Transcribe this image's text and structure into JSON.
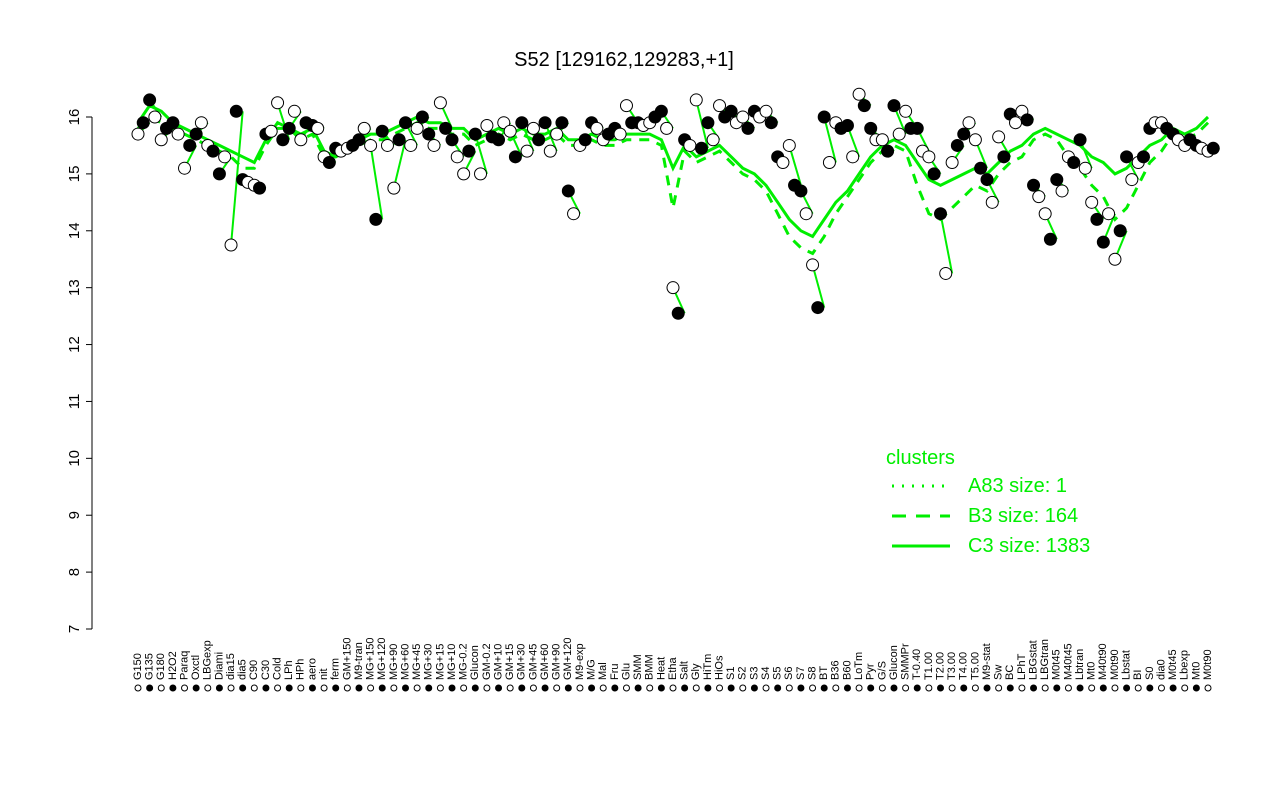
{
  "chart_data": {
    "type": "scatter",
    "title": "S52 [129162,129283,+1]",
    "ylim": [
      7,
      16.5
    ],
    "yticks": [
      7,
      8,
      9,
      10,
      11,
      12,
      13,
      14,
      15,
      16
    ],
    "grid": false,
    "colors": {
      "series": "#00ee00",
      "point_fill_dark": "#000000",
      "point_fill_light": "#ffffff",
      "axis": "#000000"
    },
    "x_tick_labels_top": [
      "G150",
      "G135",
      "G180",
      "H2O2",
      "Paraq",
      "Oxctl",
      "LBGexp",
      "Diami",
      "dia15",
      "dia5",
      "C90",
      "C30",
      "Cold",
      "LPh",
      "HPh",
      "aero",
      "nit",
      "ferm",
      "GM+150",
      "M9-tran",
      "MG+150",
      "MG+120",
      "MG+90",
      "MG+60",
      "MG+45",
      "MG+30",
      "MG+15",
      "MG+10",
      "MG-0.2",
      "Glucon",
      "GM-0.2",
      "GM+10",
      "GM+15",
      "GM+30",
      "GM+45",
      "GM+60",
      "GM+90",
      "GM+120",
      "M9-exp",
      "M/G",
      "Mal",
      "Fru",
      "Glu",
      "SMM",
      "BMM",
      "Heat",
      "Etha",
      "Salt",
      "Gly",
      "HiTm",
      "HiOs",
      "S1",
      "S2",
      "S3",
      "S4",
      "S5",
      "S6",
      "S7",
      "S8",
      "BT",
      "B36",
      "B60",
      "LoTm",
      "Pyr",
      "G/S",
      "Glucon",
      "SMMPr",
      "T-0.40",
      "T1.00",
      "T2.00",
      "T3.00",
      "T4.00",
      "T5.00",
      "M9-stat",
      "Sw",
      "BC",
      "LPhT",
      "LBGstat",
      "LBGtran",
      "M0t45",
      "M40t45",
      "Lbtran",
      "Mt0",
      "M40t90",
      "M0t90",
      "Lbstat",
      "BI",
      "S0",
      "dia0",
      "M0t45",
      "Lbexp",
      "Mt0",
      "M0t90"
    ],
    "legend": {
      "title": "clusters",
      "placement": "right",
      "entries": [
        {
          "style": "dotted",
          "label": "A83 size: 1"
        },
        {
          "style": "dashed",
          "label": "B3 size: 164"
        },
        {
          "style": "solid",
          "label": "C3 size: 1383"
        }
      ]
    },
    "series": [
      {
        "style": "solid",
        "values": [
          15.9,
          16.2,
          16.1,
          15.9,
          15.8,
          15.7,
          15.6,
          15.5,
          15.4,
          15.3,
          15.2,
          15.6,
          15.9,
          15.8,
          15.7,
          15.8,
          15.4,
          15.3,
          15.5,
          15.6,
          15.7,
          15.7,
          15.8,
          15.9,
          16.0,
          15.9,
          15.9,
          15.8,
          15.8,
          15.6,
          15.7,
          15.8,
          15.7,
          15.8,
          15.7,
          15.7,
          15.8,
          15.6,
          15.6,
          15.7,
          15.6,
          15.6,
          15.7,
          15.7,
          15.7,
          15.6,
          15.1,
          15.5,
          15.3,
          15.4,
          15.5,
          15.3,
          15.1,
          15.0,
          14.8,
          14.5,
          14.2,
          14.0,
          13.9,
          14.2,
          14.5,
          14.7,
          15.0,
          15.3,
          15.5,
          15.6,
          15.5,
          15.2,
          14.9,
          14.8,
          14.9,
          15.0,
          15.1,
          15.0,
          15.2,
          15.4,
          15.5,
          15.7,
          15.8,
          15.7,
          15.6,
          15.5,
          15.3,
          15.2,
          15.0,
          15.1,
          15.3,
          15.5,
          15.6,
          15.8,
          15.7,
          15.8,
          16.0
        ]
      },
      {
        "style": "dashed",
        "values": [
          15.8,
          16.0,
          15.9,
          15.8,
          15.7,
          15.6,
          15.5,
          15.4,
          15.3,
          15.1,
          15.1,
          15.5,
          15.8,
          15.8,
          15.6,
          15.7,
          15.3,
          15.3,
          15.4,
          15.5,
          15.6,
          15.6,
          15.7,
          15.8,
          15.9,
          15.8,
          15.8,
          15.7,
          15.7,
          15.5,
          15.6,
          15.7,
          15.6,
          15.7,
          15.6,
          15.6,
          15.7,
          15.5,
          15.5,
          15.6,
          15.5,
          15.5,
          15.6,
          15.6,
          15.6,
          15.5,
          14.4,
          15.4,
          15.2,
          15.3,
          15.4,
          15.2,
          15.0,
          14.9,
          14.7,
          14.3,
          13.9,
          13.7,
          13.6,
          13.9,
          14.3,
          14.6,
          14.9,
          15.2,
          15.4,
          15.5,
          15.4,
          14.8,
          14.3,
          14.2,
          14.4,
          14.6,
          14.8,
          14.7,
          15.0,
          15.2,
          15.3,
          15.6,
          15.7,
          15.6,
          15.3,
          15.1,
          14.8,
          14.6,
          14.2,
          14.4,
          14.8,
          15.2,
          15.4,
          15.7,
          15.6,
          15.7,
          15.9
        ]
      }
    ],
    "points": [
      [
        15.7,
        15.9
      ],
      [
        16.3,
        16.0
      ],
      [
        15.6,
        15.8
      ],
      [
        15.9,
        15.7
      ],
      [
        15.1,
        15.5
      ],
      [
        15.7,
        15.9
      ],
      [
        15.5,
        15.4
      ],
      [
        15.0,
        15.3
      ],
      [
        13.75,
        16.1
      ],
      [
        14.9,
        14.85
      ],
      [
        14.8,
        14.75
      ],
      [
        15.7,
        15.75
      ],
      [
        16.25,
        15.6
      ],
      [
        15.8,
        16.1
      ],
      [
        15.6,
        15.9
      ],
      [
        15.85,
        15.8
      ],
      [
        15.3,
        15.2
      ],
      [
        15.45,
        15.4
      ],
      [
        15.45,
        15.5
      ],
      [
        15.6,
        15.8
      ],
      [
        15.5,
        14.2
      ],
      [
        15.75,
        15.5
      ],
      [
        14.75,
        15.6
      ],
      [
        15.9,
        15.5
      ],
      [
        15.8,
        16.0
      ],
      [
        15.7,
        15.5
      ],
      [
        16.25,
        15.8
      ],
      [
        15.6,
        15.3
      ],
      [
        15.0,
        15.4
      ],
      [
        15.7,
        15.0
      ],
      [
        15.85,
        15.65
      ],
      [
        15.6,
        15.9
      ],
      [
        15.75,
        15.3
      ],
      [
        15.9,
        15.4
      ],
      [
        15.8,
        15.6
      ],
      [
        15.9,
        15.4
      ],
      [
        15.7,
        15.9
      ],
      [
        14.7,
        14.3
      ],
      [
        15.5,
        15.6
      ],
      [
        15.9,
        15.8
      ],
      [
        15.6,
        15.7
      ],
      [
        15.8,
        15.7
      ],
      [
        16.2,
        15.9
      ],
      [
        15.9,
        15.85
      ],
      [
        15.9,
        16.0
      ],
      [
        16.1,
        15.8
      ],
      [
        13.0,
        12.55
      ],
      [
        15.6,
        15.5
      ],
      [
        16.3,
        15.45
      ],
      [
        15.9,
        15.6
      ],
      [
        16.2,
        16.0
      ],
      [
        16.1,
        15.9
      ],
      [
        16.0,
        15.8
      ],
      [
        16.1,
        16.0
      ],
      [
        16.1,
        15.9
      ],
      [
        15.3,
        15.2
      ],
      [
        15.5,
        14.8
      ],
      [
        14.7,
        14.3
      ],
      [
        13.4,
        12.65
      ],
      [
        16.0,
        15.2
      ],
      [
        15.9,
        15.8
      ],
      [
        15.85,
        15.3
      ],
      [
        16.4,
        16.2
      ],
      [
        15.8,
        15.6
      ],
      [
        15.6,
        15.4
      ],
      [
        16.2,
        15.7
      ],
      [
        16.1,
        15.8
      ],
      [
        15.8,
        15.4
      ],
      [
        15.3,
        15.0
      ],
      [
        14.3,
        13.25
      ],
      [
        15.2,
        15.5
      ],
      [
        15.7,
        15.9
      ],
      [
        15.6,
        15.1
      ],
      [
        14.9,
        14.5
      ],
      [
        15.65,
        15.3
      ],
      [
        16.05,
        15.9
      ],
      [
        16.1,
        15.95
      ],
      [
        14.8,
        14.6
      ],
      [
        14.3,
        13.85
      ],
      [
        14.9,
        14.7
      ],
      [
        15.3,
        15.2
      ],
      [
        15.6,
        15.1
      ],
      [
        14.5,
        14.2
      ],
      [
        13.8,
        14.3
      ],
      [
        13.5,
        14.0
      ],
      [
        15.3,
        14.9
      ],
      [
        15.2,
        15.3
      ],
      [
        15.8,
        15.9
      ],
      [
        15.9,
        15.8
      ],
      [
        15.7,
        15.6
      ],
      [
        15.5,
        15.6
      ],
      [
        15.5,
        15.45
      ],
      [
        15.4,
        15.45
      ]
    ]
  }
}
